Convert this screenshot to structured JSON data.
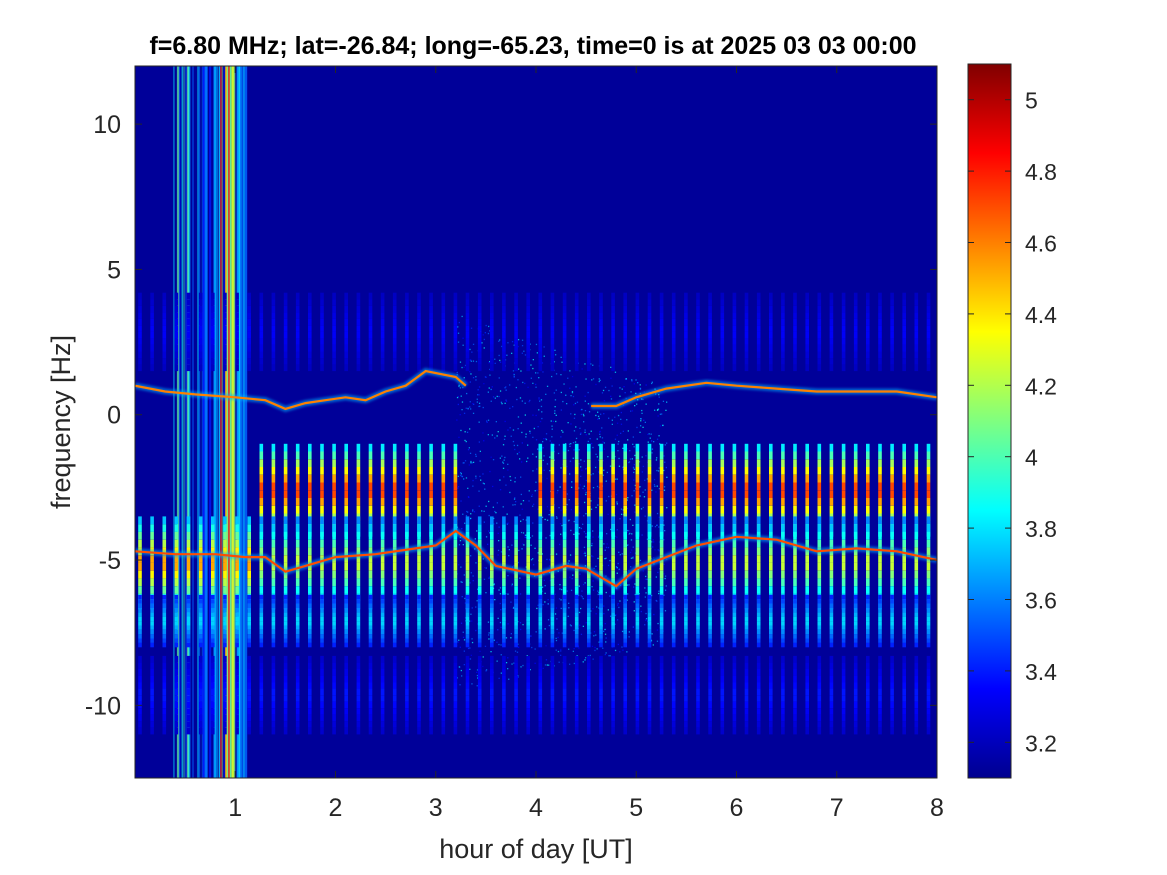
{
  "chart_data": {
    "type": "heatmap",
    "title": "f=6.80 MHz;  lat=-26.84; long=-65.23, time=0 is at 2025 03 03 00:00",
    "xlabel": "hour of day [UT]",
    "ylabel": "frequency [Hz]",
    "xlim": [
      0,
      8
    ],
    "ylim": [
      -12.5,
      12
    ],
    "xticks": [
      1,
      2,
      3,
      4,
      5,
      6,
      7,
      8
    ],
    "yticks": [
      -10,
      -5,
      0,
      5,
      10
    ],
    "colorbar": {
      "colormap": "jet",
      "range": [
        3.1,
        5.1
      ],
      "ticks": [
        3.2,
        3.4,
        3.6,
        3.8,
        4,
        4.2,
        4.4,
        4.6,
        4.8,
        5
      ]
    },
    "background_level": 3.15,
    "traces": [
      {
        "name": "",
        "level": 4.6,
        "points": [
          [
            0,
            1.0
          ],
          [
            0.3,
            0.8
          ],
          [
            0.6,
            0.7
          ],
          [
            1.0,
            0.6
          ],
          [
            1.3,
            0.5
          ],
          [
            1.5,
            0.2
          ],
          [
            1.7,
            0.4
          ],
          [
            1.9,
            0.5
          ],
          [
            2.1,
            0.6
          ],
          [
            2.3,
            0.5
          ],
          [
            2.5,
            0.8
          ],
          [
            2.7,
            1.0
          ],
          [
            2.9,
            1.5
          ],
          [
            3.2,
            1.3
          ],
          [
            3.3,
            1.0
          ]
        ]
      },
      {
        "name": "",
        "level": 4.6,
        "points": [
          [
            4.55,
            0.3
          ],
          [
            4.8,
            0.3
          ],
          [
            5.0,
            0.6
          ],
          [
            5.3,
            0.9
          ],
          [
            5.7,
            1.1
          ],
          [
            6.0,
            1.0
          ],
          [
            6.4,
            0.9
          ],
          [
            6.8,
            0.8
          ],
          [
            7.2,
            0.8
          ],
          [
            7.6,
            0.8
          ],
          [
            8.0,
            0.6
          ]
        ]
      },
      {
        "name": "",
        "level": 4.7,
        "points": [
          [
            0,
            -4.7
          ],
          [
            0.4,
            -4.8
          ],
          [
            0.8,
            -4.8
          ],
          [
            1.1,
            -4.9
          ],
          [
            1.3,
            -4.9
          ],
          [
            1.5,
            -5.4
          ],
          [
            1.7,
            -5.2
          ],
          [
            2.0,
            -4.9
          ],
          [
            2.4,
            -4.8
          ],
          [
            2.8,
            -4.6
          ],
          [
            3.0,
            -4.5
          ],
          [
            3.2,
            -4.0
          ],
          [
            3.4,
            -4.5
          ],
          [
            3.6,
            -5.2
          ],
          [
            4.0,
            -5.5
          ],
          [
            4.3,
            -5.2
          ],
          [
            4.5,
            -5.3
          ],
          [
            4.8,
            -5.9
          ],
          [
            5.0,
            -5.3
          ],
          [
            5.3,
            -4.9
          ],
          [
            5.6,
            -4.5
          ],
          [
            6.0,
            -4.2
          ],
          [
            6.4,
            -4.3
          ],
          [
            6.8,
            -4.7
          ],
          [
            7.2,
            -4.6
          ],
          [
            7.6,
            -4.7
          ],
          [
            8.0,
            -5.0
          ]
        ]
      }
    ],
    "stripe_interval_hours": 0.121,
    "stripe_start_hours": 0.05,
    "stripe_level_max": 4.8
  }
}
